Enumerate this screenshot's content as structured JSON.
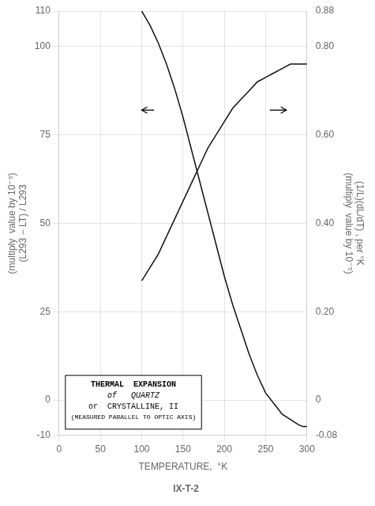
{
  "chart_data": {
    "type": "line",
    "title": "IX-T-2",
    "xlabel": "TEMPERATURE,  °K",
    "ylabel": [
      "(multiply  value by 10⁻⁵)",
      "(L293 − LT) / L293"
    ],
    "y2label": [
      "(1/L)(dL/dT) , per °K",
      "(multiply  value by 10⁻⁵)"
    ],
    "xlim": [
      0,
      300
    ],
    "xticks": [
      0,
      50,
      100,
      150,
      200,
      250,
      300
    ],
    "ylim": [
      -10,
      110
    ],
    "yticks": [
      -10,
      0,
      25,
      50,
      75,
      100,
      110
    ],
    "y2lim": [
      -0.08,
      0.88
    ],
    "y2ticks": [
      -0.08,
      0,
      {
        "value": 0.2,
        "label": "0.20"
      },
      {
        "value": 0.4,
        "label": "0.40"
      },
      {
        "value": 0.6,
        "label": "0.60"
      },
      {
        "value": 0.8,
        "label": "0.80"
      },
      0.88
    ],
    "grid": true,
    "series": [
      {
        "color": "#111111",
        "x": [
          100,
          110,
          120,
          130,
          140,
          150,
          160,
          170,
          180,
          190,
          200,
          210,
          220,
          230,
          240,
          250,
          260,
          270,
          280,
          290,
          295,
          300
        ],
        "values": [
          110,
          106,
          101,
          95,
          88,
          80,
          71,
          62,
          53,
          44,
          35,
          27,
          20,
          13,
          7,
          2,
          -1,
          -4,
          -5.5,
          -7,
          -7.5,
          -7.5
        ]
      },
      {
        "color": "#111111",
        "axis": "y2",
        "x": [
          100,
          110,
          120,
          130,
          140,
          150,
          160,
          170,
          180,
          190,
          200,
          210,
          220,
          230,
          240,
          250,
          260,
          270,
          280,
          290,
          300
        ],
        "values": [
          0.27,
          0.3,
          0.33,
          0.37,
          0.41,
          0.45,
          0.49,
          0.53,
          0.57,
          0.6,
          0.63,
          0.66,
          0.68,
          0.7,
          0.72,
          0.73,
          0.74,
          0.75,
          0.76,
          0.76,
          0.76
        ]
      }
    ],
    "annotations": [
      {
        "type": "arrow",
        "x_start": 115,
        "x_end": 100,
        "y": 82
      },
      {
        "type": "arrow",
        "x_start": 255,
        "x_end": 275,
        "y": 82
      },
      {
        "type": "text_box",
        "text": [
          "THERMAL  EXPANSION",
          "of   QUARTZ",
          "or  CRYSTALLINE, II",
          "(MEASURED PARALLEL TO OPTIC AXIS)"
        ]
      }
    ]
  }
}
